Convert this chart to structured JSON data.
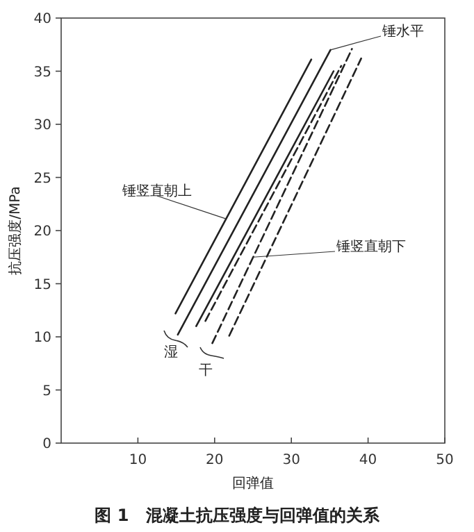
{
  "chart_data": {
    "type": "line",
    "title": "图 1　混凝土抗压强度与回弹值的关系",
    "xlabel": "回弹值",
    "ylabel": "抗压强度/MPa",
    "xlim": [
      0,
      50
    ],
    "xticks": [
      10,
      20,
      30,
      40,
      50
    ],
    "ylim": [
      0,
      40
    ],
    "yticks": [
      0,
      5,
      10,
      15,
      20,
      25,
      30,
      35,
      40
    ],
    "grid": false,
    "series": [
      {
        "color": "#222222",
        "line_style": "solid",
        "x": [
          14.9,
          32.6
        ],
        "values": [
          12.2,
          36.1
        ]
      },
      {
        "color": "#222222",
        "line_style": "solid",
        "x": [
          15.2,
          35.1
        ],
        "values": [
          10.2,
          37
        ]
      },
      {
        "color": "#222222",
        "line_style": "solid",
        "x": [
          17.6,
          35.5
        ],
        "values": [
          11,
          35
        ]
      },
      {
        "color": "#222222",
        "line_style": "dashed",
        "x": [
          18.8,
          36.5
        ],
        "values": [
          11.5,
          35.5
        ]
      },
      {
        "color": "#222222",
        "line_style": "dashed",
        "x": [
          19.7,
          37.9
        ],
        "values": [
          9.4,
          37.1
        ]
      },
      {
        "color": "#222222",
        "line_style": "dashed",
        "x": [
          21.9,
          39.1
        ],
        "values": [
          10.1,
          36.2
        ]
      }
    ],
    "annotations": [
      {
        "text": "锤水平",
        "x": 35.1,
        "y": 37
      },
      {
        "text": "锤竖直朝上",
        "x": 21.5,
        "y": 21.1
      },
      {
        "text": "锤竖直朝下",
        "x": 25,
        "y": 17.5
      },
      "湿",
      "干"
    ]
  }
}
